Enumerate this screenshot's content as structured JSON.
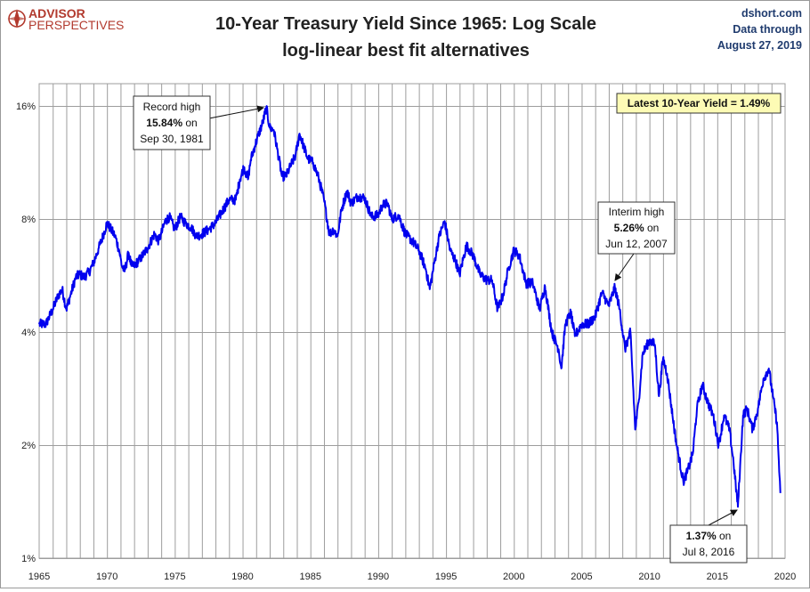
{
  "logo": {
    "line1": "ADVISOR",
    "line2": "PERSPECTIVES"
  },
  "source": {
    "site": "dshort.com",
    "line2": "Data through",
    "line3": "August 27, 2019"
  },
  "chart_data": {
    "type": "line",
    "title": "10-Year Treasury Yield Since 1965: Log Scale",
    "subtitle": "log-linear best fit alternatives",
    "yscale": "log",
    "ylim": [
      1,
      16
    ],
    "xlim": [
      1965,
      2020
    ],
    "y_ticks": [
      1,
      2,
      4,
      8,
      16
    ],
    "y_tick_labels": [
      "1%",
      "2%",
      "4%",
      "8%",
      "16%"
    ],
    "x_ticks": [
      1965,
      1970,
      1975,
      1980,
      1985,
      1990,
      1995,
      2000,
      2005,
      2010,
      2015,
      2020
    ],
    "x_tick_labels": [
      "1965",
      "1970",
      "1975",
      "1980",
      "1985",
      "1990",
      "1995",
      "2000",
      "2005",
      "2010",
      "2015",
      "2020"
    ],
    "grid": true,
    "line_color": "#0000ee",
    "series": [
      {
        "x": [
          1965.0,
          1965.5,
          1966.0,
          1966.4,
          1966.7,
          1967.0,
          1967.3,
          1967.7,
          1968.0,
          1968.3,
          1968.7,
          1969.0,
          1969.4,
          1969.7,
          1970.0,
          1970.3,
          1970.6,
          1970.9,
          1971.1,
          1971.3,
          1971.6,
          1971.8,
          1972.0,
          1972.5,
          1973.0,
          1973.5,
          1973.8,
          1974.0,
          1974.3,
          1974.6,
          1975.0,
          1975.4,
          1975.8,
          1976.2,
          1976.6,
          1977.0,
          1977.5,
          1978.0,
          1978.5,
          1979.0,
          1979.5,
          1979.8,
          1980.1,
          1980.4,
          1980.6,
          1980.9,
          1981.2,
          1981.5,
          1981.75,
          1982.0,
          1982.3,
          1982.6,
          1982.9,
          1983.2,
          1983.5,
          1983.9,
          1984.2,
          1984.5,
          1984.8,
          1985.2,
          1985.6,
          1986.0,
          1986.4,
          1986.7,
          1987.0,
          1987.3,
          1987.7,
          1988.0,
          1988.5,
          1989.0,
          1989.5,
          1990.0,
          1990.3,
          1990.7,
          1991.0,
          1991.5,
          1992.0,
          1992.5,
          1993.0,
          1993.5,
          1993.8,
          1994.2,
          1994.5,
          1994.9,
          1995.3,
          1995.7,
          1996.0,
          1996.5,
          1997.0,
          1997.5,
          1998.0,
          1998.4,
          1998.8,
          1999.2,
          1999.6,
          2000.0,
          2000.4,
          2000.9,
          2001.4,
          2001.9,
          2002.3,
          2002.8,
          2003.3,
          2003.5,
          2003.8,
          2004.2,
          2004.5,
          2005.0,
          2005.5,
          2006.0,
          2006.5,
          2007.0,
          2007.45,
          2007.8,
          2008.2,
          2008.6,
          2008.95,
          2009.2,
          2009.5,
          2010.0,
          2010.4,
          2010.7,
          2011.0,
          2011.3,
          2011.7,
          2012.0,
          2012.5,
          2012.8,
          2013.2,
          2013.5,
          2013.9,
          2014.3,
          2014.7,
          2015.1,
          2015.5,
          2015.9,
          2016.2,
          2016.52,
          2016.9,
          2017.2,
          2017.6,
          2018.0,
          2018.4,
          2018.8,
          2019.1,
          2019.4,
          2019.65
        ],
        "y": [
          4.2,
          4.2,
          4.6,
          5.0,
          5.2,
          4.6,
          5.0,
          5.6,
          5.7,
          5.6,
          5.8,
          6.1,
          6.7,
          7.2,
          7.8,
          7.5,
          7.2,
          6.6,
          6.0,
          5.8,
          6.5,
          6.0,
          6.0,
          6.3,
          6.7,
          7.3,
          7.0,
          7.3,
          7.9,
          8.1,
          7.5,
          8.1,
          7.8,
          7.6,
          7.2,
          7.3,
          7.5,
          7.8,
          8.4,
          9.0,
          9.0,
          10.2,
          11.0,
          10.2,
          11.5,
          12.5,
          13.5,
          14.5,
          15.84,
          14.0,
          13.8,
          12.0,
          10.4,
          10.4,
          11.0,
          11.8,
          13.5,
          12.5,
          11.6,
          11.3,
          10.3,
          9.0,
          7.3,
          7.5,
          7.2,
          8.5,
          9.5,
          8.8,
          9.2,
          9.1,
          8.1,
          8.2,
          8.7,
          8.8,
          8.0,
          8.2,
          7.3,
          7.0,
          6.6,
          5.9,
          5.2,
          6.3,
          7.2,
          7.9,
          6.6,
          6.2,
          5.7,
          6.8,
          6.4,
          5.7,
          5.5,
          5.5,
          4.6,
          5.0,
          5.9,
          6.6,
          6.4,
          5.4,
          5.4,
          4.6,
          5.3,
          4.0,
          3.6,
          3.2,
          4.2,
          4.5,
          3.9,
          4.2,
          4.2,
          4.4,
          5.1,
          4.7,
          5.26,
          4.6,
          3.6,
          4.0,
          2.2,
          2.6,
          3.5,
          3.8,
          3.7,
          2.7,
          3.4,
          3.1,
          2.4,
          2.0,
          1.6,
          1.7,
          1.9,
          2.5,
          2.9,
          2.6,
          2.4,
          2.0,
          2.4,
          2.2,
          1.8,
          1.37,
          2.4,
          2.5,
          2.2,
          2.5,
          3.0,
          3.2,
          2.7,
          2.3,
          1.49
        ]
      }
    ],
    "latest_label": "Latest 10-Year Yield = 1.49%",
    "annotations": [
      {
        "line1": "Record high",
        "line2_bold": "15.84%",
        "line2_rest": " on",
        "line3": "Sep 30, 1981"
      },
      {
        "line1": "Interim high",
        "line2_bold": "5.26%",
        "line2_rest": " on",
        "line3": "Jun 12, 2007"
      },
      {
        "line1_bold": "1.37%",
        "line1_rest": " on",
        "line2": "Jul 8, 2016"
      }
    ]
  }
}
